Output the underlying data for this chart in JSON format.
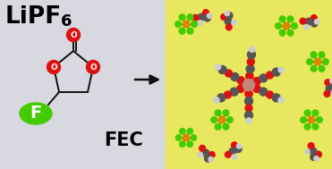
{
  "left_bg": "#d8d8e0",
  "right_bg": "#e8e860",
  "lipf6": "LiPF",
  "sub6": "6",
  "fec_text": "FEC",
  "f_text": "F",
  "o_color": "#dd1111",
  "c_color": "#555555",
  "h_color": "#cccccc",
  "bond_color": "#111111",
  "green_f": "#44cc00",
  "orange_p": "#dd8800",
  "li_color": "#c08878",
  "fig_w": 3.71,
  "fig_h": 1.89,
  "dpi": 100
}
